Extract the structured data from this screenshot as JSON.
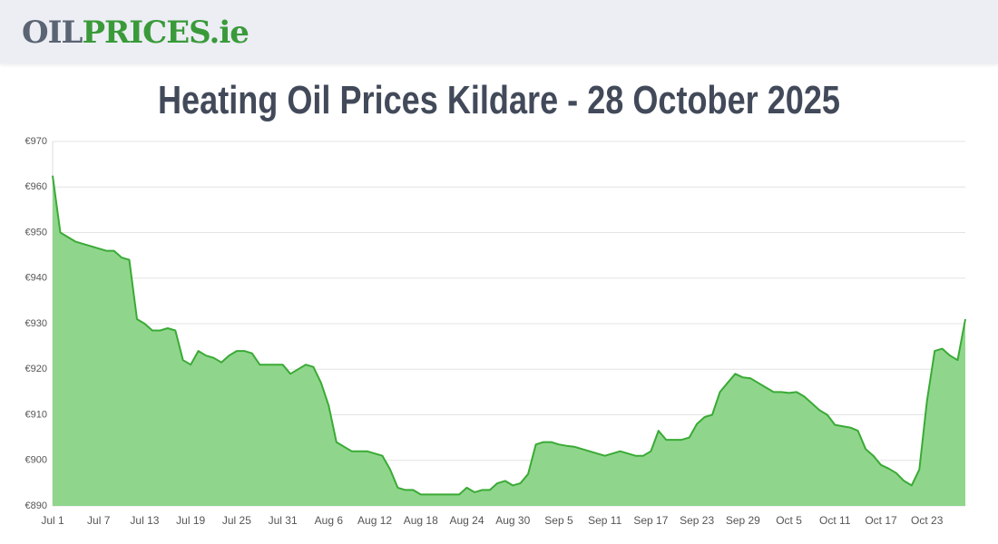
{
  "header": {
    "logo_gray": "OIL",
    "logo_green": "PRICES.ie"
  },
  "chart_data": {
    "type": "area",
    "title": "Heating Oil Prices Kildare - 28 October 2025",
    "categories": [
      "Jul 1",
      null,
      null,
      null,
      null,
      null,
      "Jul 7",
      null,
      null,
      null,
      null,
      null,
      "Jul 13",
      null,
      null,
      null,
      null,
      null,
      "Jul 19",
      null,
      null,
      null,
      null,
      null,
      "Jul 25",
      null,
      null,
      null,
      null,
      null,
      "Jul 31",
      null,
      null,
      null,
      null,
      null,
      "Aug 6",
      null,
      null,
      null,
      null,
      null,
      "Aug 12",
      null,
      null,
      null,
      null,
      null,
      "Aug 18",
      null,
      null,
      null,
      null,
      null,
      "Aug 24",
      null,
      null,
      null,
      null,
      null,
      "Aug 30",
      null,
      null,
      null,
      null,
      null,
      "Sep 5",
      null,
      null,
      null,
      null,
      null,
      "Sep 11",
      null,
      null,
      null,
      null,
      null,
      "Sep 17",
      null,
      null,
      null,
      null,
      null,
      "Sep 23",
      null,
      null,
      null,
      null,
      null,
      "Sep 29",
      null,
      null,
      null,
      null,
      null,
      "Oct 5",
      null,
      null,
      null,
      null,
      null,
      "Oct 11",
      null,
      null,
      null,
      null,
      null,
      "Oct 17",
      null,
      null,
      null,
      null,
      null,
      "Oct 23",
      null,
      null,
      null,
      null,
      null
    ],
    "values": [
      962.5,
      950,
      949,
      948,
      947.5,
      947,
      946.5,
      946,
      946,
      944.5,
      944,
      931,
      930,
      928.5,
      928.5,
      929,
      928.5,
      922,
      921,
      924,
      923,
      922.5,
      921.5,
      923,
      924,
      924,
      923.5,
      921,
      921,
      921,
      921,
      919,
      920,
      921,
      920.5,
      917,
      912,
      904,
      903,
      902,
      902,
      902,
      901.5,
      901,
      898,
      894,
      893.5,
      893.5,
      892.5,
      892.5,
      892.5,
      892.5,
      892.5,
      892.5,
      894,
      893,
      893.5,
      893.5,
      895,
      895.5,
      894.5,
      895,
      897,
      903.5,
      904,
      904,
      903.5,
      903.2,
      903,
      902.5,
      902,
      901.5,
      901,
      901.5,
      902,
      901.5,
      901,
      901,
      902,
      906.5,
      904.5,
      904.5,
      904.5,
      905,
      908,
      909.5,
      910,
      915,
      917,
      919,
      918.2,
      918,
      917,
      916,
      915,
      915,
      914.8,
      915,
      914,
      912.5,
      911,
      910,
      907.8,
      907.5,
      907.2,
      906.5,
      902.5,
      901,
      899,
      898.2,
      897.2,
      895.5,
      894.5,
      898,
      913,
      924,
      924.5,
      923,
      922,
      931
    ],
    "color": "#3aaa35",
    "fill": "#8fd68c",
    "ylim": [
      890,
      970
    ],
    "yticks": [
      {
        "value": 890,
        "label": "€890"
      },
      {
        "value": 900,
        "label": "€900"
      },
      {
        "value": 910,
        "label": "€910"
      },
      {
        "value": 920,
        "label": "€920"
      },
      {
        "value": 930,
        "label": "€930"
      },
      {
        "value": 940,
        "label": "€940"
      },
      {
        "value": 950,
        "label": "€950"
      },
      {
        "value": 960,
        "label": "€960"
      },
      {
        "value": 970,
        "label": "€970"
      }
    ],
    "grid": true
  }
}
